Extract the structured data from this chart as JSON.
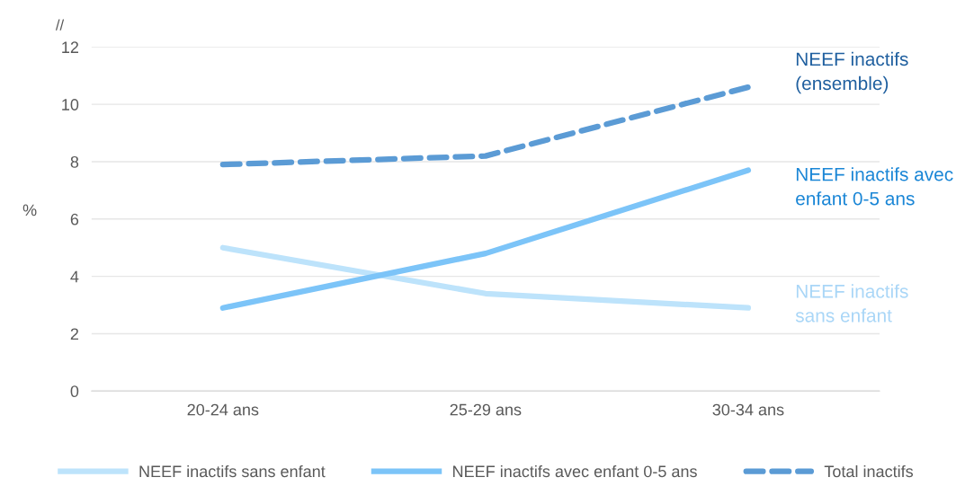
{
  "chart_data": {
    "type": "line",
    "ylabel": "%",
    "categories": [
      "20-24 ans",
      "25-29 ans",
      "30-34 ans"
    ],
    "series": [
      {
        "name": "NEEF inactifs sans enfant",
        "color": "#bde3fb",
        "values": [
          5.0,
          3.4,
          2.9
        ]
      },
      {
        "name": "NEEF inactifs avec enfant 0-5 ans",
        "color": "#7cc4f8",
        "values": [
          2.9,
          4.8,
          7.7
        ]
      },
      {
        "name": "Total inactifs",
        "color": "#5b9bd5",
        "values": [
          7.9,
          8.2,
          10.6
        ],
        "line_style": "dashed"
      }
    ],
    "annotations": [
      "NEEF inactifs\nsans enfant",
      "NEEF inactifs avec\nenfant 0-5 ans",
      "NEEF inactifs\n(ensemble)",
      "//"
    ],
    "ylim": [
      0,
      12
    ],
    "yticks": [
      0,
      2,
      4,
      6,
      8,
      10,
      12
    ],
    "grid": "y",
    "legend": "bottom"
  }
}
